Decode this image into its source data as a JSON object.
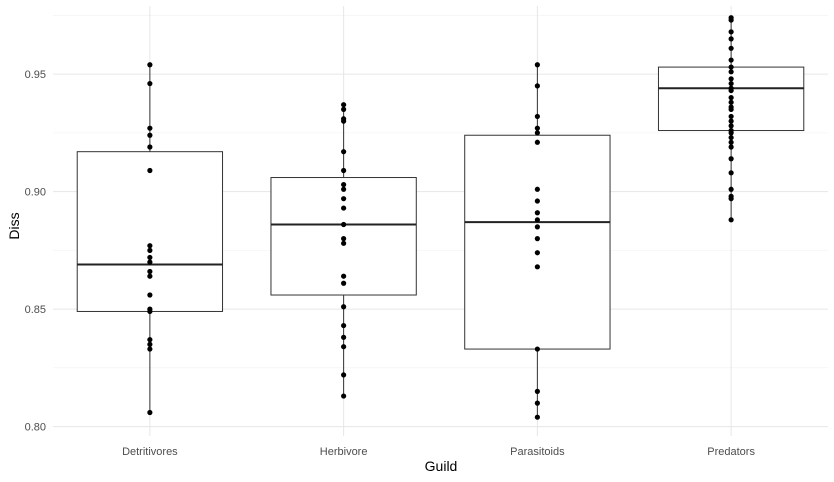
{
  "chart_data": {
    "type": "box",
    "xlabel": "Guild",
    "ylabel": "Diss",
    "ylim": [
      0.796,
      0.979
    ],
    "y_ticks": [
      0.8,
      0.85,
      0.9,
      0.95
    ],
    "y_tick_labels": [
      "0.80",
      "0.85",
      "0.90",
      "0.95"
    ],
    "grid": true,
    "categories": [
      "Detritivores",
      "Herbivore",
      "Parasitoids",
      "Predators"
    ],
    "boxes": [
      {
        "q1": 0.849,
        "median": 0.869,
        "q3": 0.917,
        "whisker_low": 0.806,
        "whisker_high": 0.954
      },
      {
        "q1": 0.856,
        "median": 0.886,
        "q3": 0.906,
        "whisker_low": 0.813,
        "whisker_high": 0.937
      },
      {
        "q1": 0.833,
        "median": 0.887,
        "q3": 0.924,
        "whisker_low": 0.804,
        "whisker_high": 0.954
      },
      {
        "q1": 0.926,
        "median": 0.944,
        "q3": 0.953,
        "whisker_low": 0.888,
        "whisker_high": 0.974
      }
    ],
    "points": [
      [
        0.954,
        0.946,
        0.927,
        0.924,
        0.919,
        0.909,
        0.877,
        0.875,
        0.872,
        0.87,
        0.866,
        0.864,
        0.856,
        0.85,
        0.849,
        0.837,
        0.835,
        0.833,
        0.806
      ],
      [
        0.937,
        0.935,
        0.931,
        0.93,
        0.917,
        0.909,
        0.903,
        0.901,
        0.897,
        0.893,
        0.886,
        0.88,
        0.878,
        0.864,
        0.861,
        0.851,
        0.843,
        0.838,
        0.834,
        0.822,
        0.813
      ],
      [
        0.954,
        0.945,
        0.932,
        0.927,
        0.925,
        0.921,
        0.901,
        0.896,
        0.891,
        0.888,
        0.885,
        0.88,
        0.874,
        0.868,
        0.833,
        0.815,
        0.81,
        0.804
      ],
      [
        0.974,
        0.973,
        0.968,
        0.965,
        0.961,
        0.956,
        0.953,
        0.951,
        0.948,
        0.946,
        0.944,
        0.943,
        0.94,
        0.938,
        0.936,
        0.935,
        0.932,
        0.93,
        0.928,
        0.926,
        0.925,
        0.923,
        0.921,
        0.919,
        0.914,
        0.908,
        0.901,
        0.898,
        0.897,
        0.888
      ]
    ]
  }
}
